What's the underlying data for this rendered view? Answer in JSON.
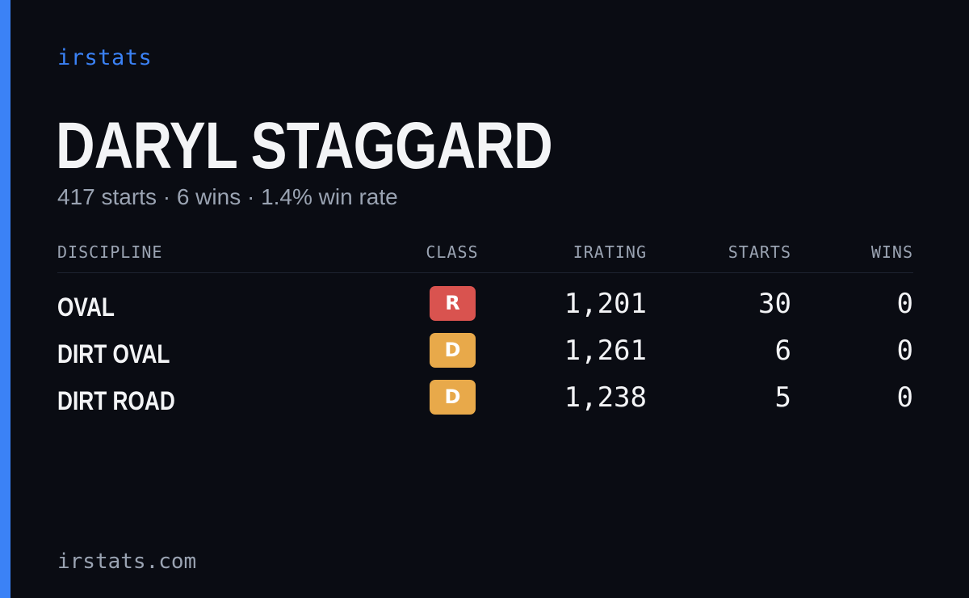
{
  "brand": "irstats",
  "driver": {
    "name": "DARYL STAGGARD",
    "summary": "417 starts · 6 wins · 1.4% win rate"
  },
  "table": {
    "headers": {
      "discipline": "DISCIPLINE",
      "class": "CLASS",
      "irating": "IRATING",
      "starts": "STARTS",
      "wins": "WINS"
    },
    "rows": [
      {
        "discipline": "OVAL",
        "class": "R",
        "class_color": "#d9534f",
        "irating": "1,201",
        "starts": "30",
        "wins": "0"
      },
      {
        "discipline": "DIRT OVAL",
        "class": "D",
        "class_color": "#e8a94a",
        "irating": "1,261",
        "starts": "6",
        "wins": "0"
      },
      {
        "discipline": "DIRT ROAD",
        "class": "D",
        "class_color": "#e8a94a",
        "irating": "1,238",
        "starts": "5",
        "wins": "0"
      }
    ]
  },
  "footer": "irstats.com",
  "colors": {
    "accent": "#3b82f6",
    "background": "#0a0c13"
  }
}
